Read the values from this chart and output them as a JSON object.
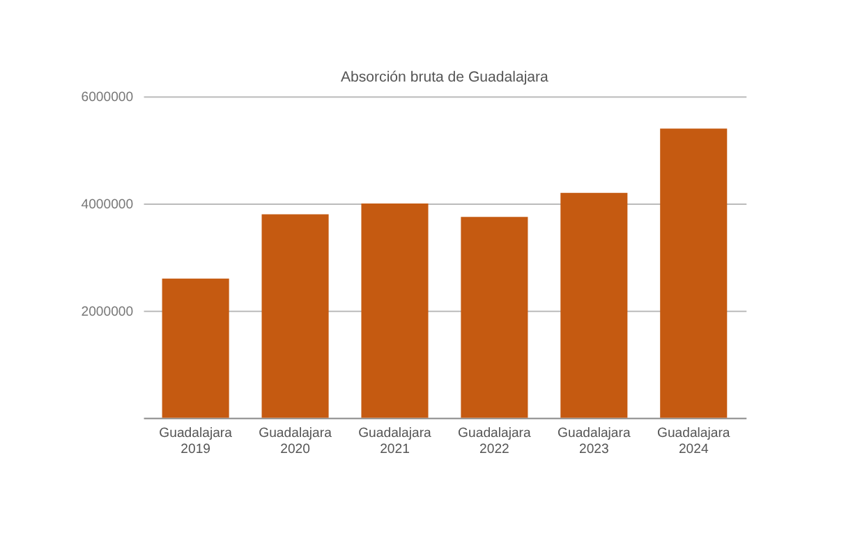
{
  "chart_data": {
    "type": "bar",
    "title": "Absorción bruta de Guadalajara",
    "categories": [
      "Guadalajara 2019",
      "Guadalajara 2020",
      "Guadalajara 2021",
      "Guadalajara 2022",
      "Guadalajara 2023",
      "Guadalajara 2024"
    ],
    "values": [
      2600000,
      3800000,
      4000000,
      3750000,
      4200000,
      5400000
    ],
    "color": "#c55a11",
    "ylim": [
      0,
      6000000
    ],
    "yticks": [
      2000000,
      4000000,
      6000000
    ],
    "grid": "y"
  }
}
